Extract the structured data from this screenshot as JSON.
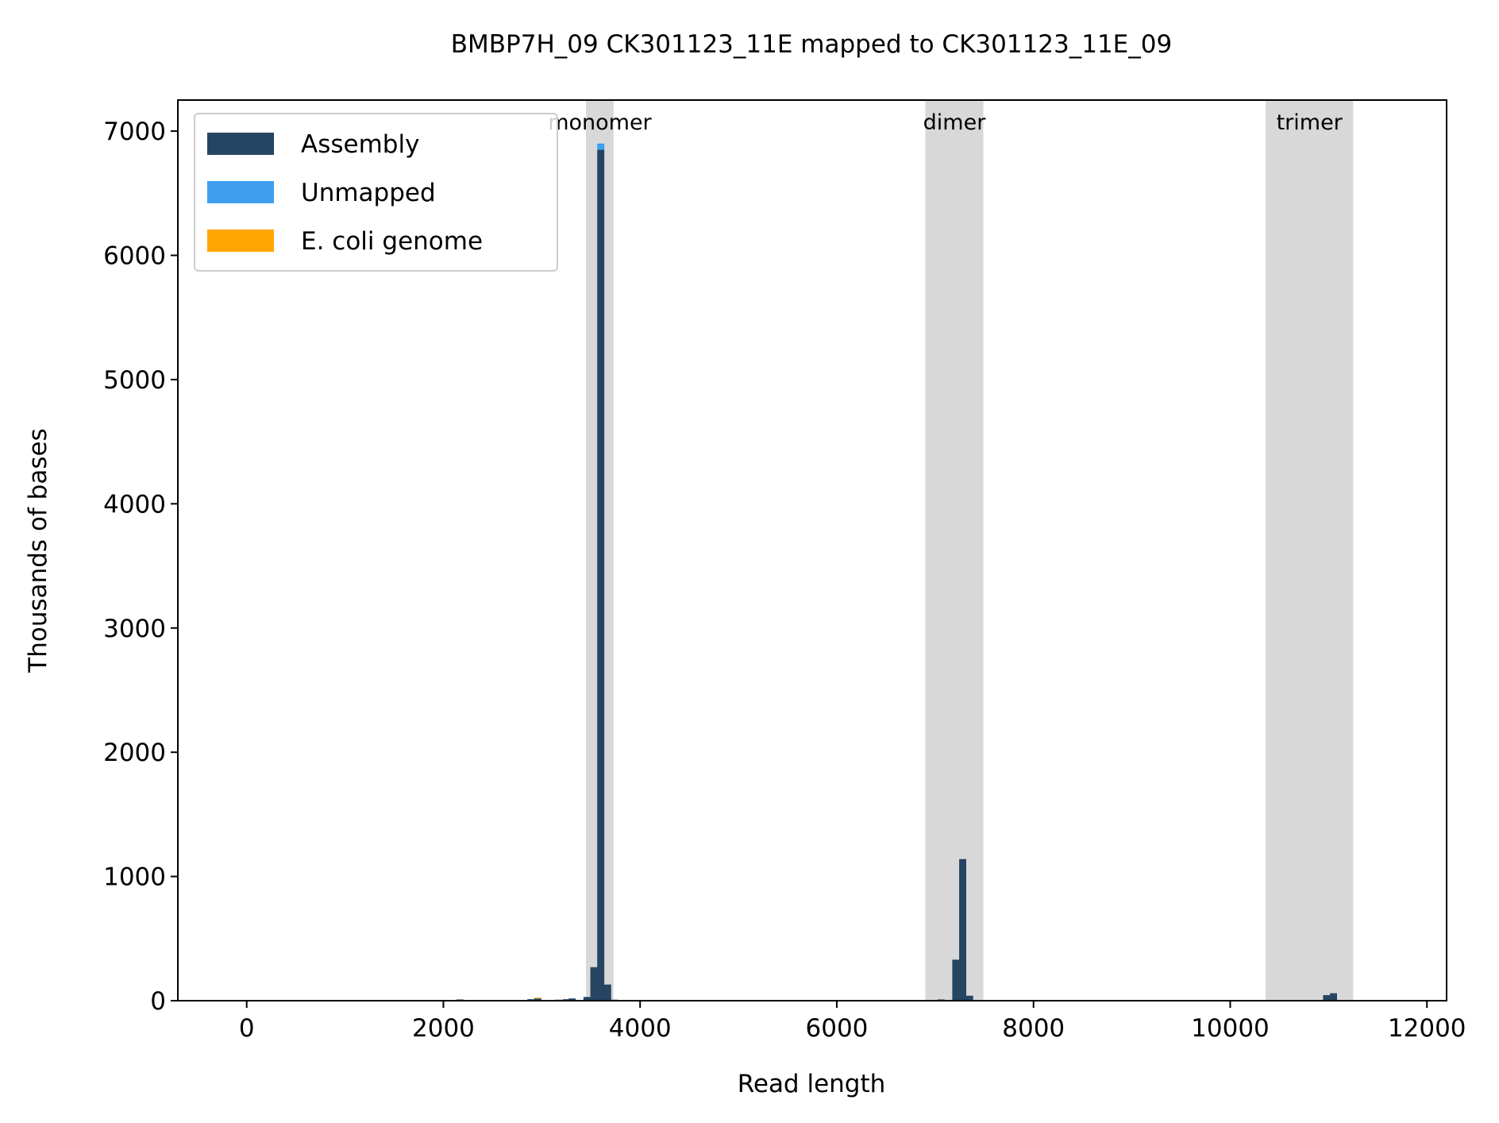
{
  "chart_data": {
    "type": "bar",
    "title": "BMBP7H_09 CK301123_11E mapped to CK301123_11E_09",
    "xlabel": "Read length",
    "ylabel": "Thousands of bases",
    "xlim": [
      -700,
      12200
    ],
    "ylim": [
      0,
      7250
    ],
    "xticks": [
      0,
      2000,
      4000,
      6000,
      8000,
      10000,
      12000
    ],
    "yticks": [
      0,
      1000,
      2000,
      3000,
      4000,
      5000,
      6000,
      7000
    ],
    "bin_width": 72,
    "grid": false,
    "legend_position": "top-left",
    "regions": [
      {
        "label": "monomer",
        "x0": 3450,
        "x1": 3730
      },
      {
        "label": "dimer",
        "x0": 6900,
        "x1": 7490
      },
      {
        "label": "trimer",
        "x0": 10360,
        "x1": 11250
      }
    ],
    "series": [
      {
        "name": "Assembly",
        "color": "#264562",
        "points": [
          [
            2170,
            10
          ],
          [
            2890,
            12
          ],
          [
            2960,
            18
          ],
          [
            3170,
            8
          ],
          [
            3250,
            12
          ],
          [
            3310,
            18
          ],
          [
            3460,
            30
          ],
          [
            3530,
            270
          ],
          [
            3600,
            6850
          ],
          [
            3670,
            130
          ],
          [
            3740,
            8
          ],
          [
            7060,
            10
          ],
          [
            7210,
            330
          ],
          [
            7280,
            1140
          ],
          [
            7350,
            40
          ],
          [
            10980,
            45
          ],
          [
            11050,
            60
          ]
        ]
      },
      {
        "name": "Unmapped",
        "color": "#3e9ff0",
        "points": [
          [
            3600,
            50
          ]
        ]
      },
      {
        "name": "E. coli genome",
        "color": "#ffa500",
        "points": [
          [
            1880,
            6
          ],
          [
            2100,
            5
          ],
          [
            2960,
            6
          ],
          [
            3100,
            5
          ],
          [
            5980,
            5
          ]
        ]
      }
    ]
  }
}
